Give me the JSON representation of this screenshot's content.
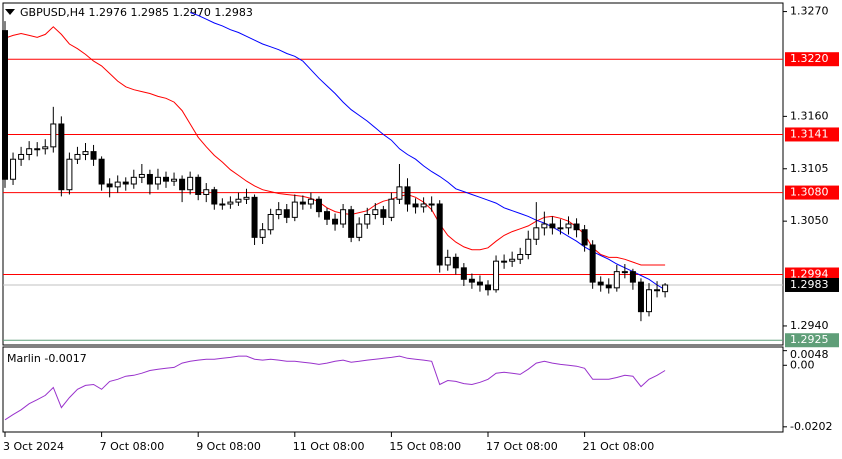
{
  "chart_data": [
    {
      "type": "candlestick",
      "title": "GBPUSD,H4  1.2976 1.2985 1.2970 1.2983",
      "categories": [
        "3 Oct 2024",
        null,
        null,
        null,
        null,
        null,
        null,
        null,
        null,
        null,
        null,
        null,
        "7 Oct 08:00",
        null,
        null,
        null,
        null,
        null,
        null,
        null,
        null,
        null,
        null,
        null,
        "9 Oct 08:00",
        null,
        null,
        null,
        null,
        null,
        null,
        null,
        null,
        null,
        null,
        null,
        "11 Oct 08:00",
        null,
        null,
        null,
        null,
        null,
        null,
        null,
        null,
        null,
        null,
        null,
        "15 Oct 08:00",
        null,
        null,
        null,
        null,
        null,
        null,
        null,
        null,
        null,
        null,
        null,
        "17 Oct 08:00",
        null,
        null,
        null,
        null,
        null,
        null,
        null,
        null,
        null,
        null,
        null,
        "21 Oct 08:00",
        null,
        null,
        null,
        null,
        null,
        null,
        null,
        null,
        null,
        null
      ],
      "open": [
        1.325,
        1.3094,
        1.3115,
        1.312,
        1.3126,
        1.3126,
        1.3128,
        1.3152,
        1.3083,
        1.3115,
        1.312,
        1.3123,
        1.3115,
        1.3089,
        1.3086,
        1.3091,
        1.3089,
        1.3096,
        1.3099,
        1.3089,
        1.3096,
        1.3092,
        1.3094,
        1.3083,
        1.3096,
        1.3078,
        1.3083,
        1.3068,
        1.3068,
        1.307,
        1.3073,
        1.3075,
        1.3033,
        1.3041,
        1.3057,
        1.3062,
        1.3054,
        1.307,
        1.3068,
        1.3073,
        1.306,
        1.3052,
        1.3047,
        1.3062,
        1.3033,
        1.3047,
        1.3057,
        1.3062,
        1.3054,
        1.3073,
        1.3086,
        1.3068,
        1.3065,
        1.3068,
        1.3068,
        1.3004,
        1.3012,
        1.3001,
        1.2989,
        1.2986,
        1.2983,
        1.2978,
        1.3008,
        1.3008,
        1.301,
        1.3015,
        1.3031,
        1.3043,
        1.3047,
        1.3043,
        1.3043,
        1.3047,
        1.3041,
        1.3025,
        1.2986,
        1.2983,
        1.298,
        1.2997,
        1.2997,
        1.2986,
        1.2955,
        1.2978,
        1.2976
      ],
      "high": [
        1.326,
        1.3122,
        1.3128,
        1.3134,
        1.3133,
        1.3136,
        1.317,
        1.316,
        1.3122,
        1.3128,
        1.3132,
        1.313,
        1.3118,
        1.3095,
        1.3098,
        1.3096,
        1.3104,
        1.311,
        1.3104,
        1.3105,
        1.3102,
        1.3101,
        1.3098,
        1.3102,
        1.3099,
        1.309,
        1.3086,
        1.3074,
        1.3076,
        1.308,
        1.3084,
        1.3078,
        1.3048,
        1.3063,
        1.307,
        1.3068,
        1.3078,
        1.3077,
        1.308,
        1.3076,
        1.3064,
        1.3058,
        1.3068,
        1.3066,
        1.3054,
        1.3064,
        1.3069,
        1.3066,
        1.308,
        1.311,
        1.3095,
        1.3074,
        1.3075,
        1.3076,
        1.3072,
        1.302,
        1.3016,
        1.3006,
        1.2995,
        1.2993,
        1.2988,
        1.3014,
        1.3015,
        1.3018,
        1.3022,
        1.304,
        1.307,
        1.306,
        1.3055,
        1.3052,
        1.3055,
        1.3053,
        1.3046,
        1.303,
        1.2992,
        1.299,
        1.3004,
        1.3005,
        1.3,
        1.299,
        1.2985,
        1.2987,
        1.2985
      ],
      "low": [
        1.3085,
        1.3088,
        1.3108,
        1.3114,
        1.3118,
        1.312,
        1.3122,
        1.3076,
        1.3078,
        1.311,
        1.3114,
        1.3108,
        1.3082,
        1.3075,
        1.308,
        1.3082,
        1.3084,
        1.309,
        1.3078,
        1.3083,
        1.3085,
        1.3087,
        1.307,
        1.3078,
        1.3072,
        1.307,
        1.3062,
        1.3062,
        1.3063,
        1.3066,
        1.3068,
        1.3025,
        1.3026,
        1.3036,
        1.3052,
        1.3048,
        1.305,
        1.3062,
        1.3063,
        1.3054,
        1.3046,
        1.304,
        1.3043,
        1.3028,
        1.3029,
        1.3042,
        1.3052,
        1.3046,
        1.305,
        1.3068,
        1.306,
        1.3058,
        1.3059,
        1.306,
        1.2996,
        1.2998,
        1.2994,
        1.2982,
        1.2979,
        1.2976,
        1.2972,
        1.2975,
        1.3,
        1.3002,
        1.3005,
        1.301,
        1.3025,
        1.3035,
        1.3036,
        1.3036,
        1.3036,
        1.3033,
        1.3018,
        1.2979,
        1.2976,
        1.2974,
        1.2976,
        1.299,
        1.2978,
        1.2945,
        1.295,
        1.297,
        1.297
      ],
      "close": [
        1.3094,
        1.3115,
        1.312,
        1.3126,
        1.3126,
        1.3128,
        1.3152,
        1.3083,
        1.3115,
        1.312,
        1.3123,
        1.3115,
        1.3089,
        1.3086,
        1.3091,
        1.3089,
        1.3096,
        1.3099,
        1.3089,
        1.3096,
        1.3092,
        1.3094,
        1.3083,
        1.3096,
        1.3078,
        1.3083,
        1.3068,
        1.3068,
        1.307,
        1.3073,
        1.3075,
        1.3033,
        1.3041,
        1.3057,
        1.3062,
        1.3054,
        1.307,
        1.3068,
        1.3073,
        1.306,
        1.3052,
        1.3047,
        1.3062,
        1.3033,
        1.3047,
        1.3057,
        1.3062,
        1.3054,
        1.3073,
        1.3086,
        1.3068,
        1.3065,
        1.3068,
        1.3068,
        1.3004,
        1.3012,
        1.3001,
        1.2989,
        1.2986,
        1.2983,
        1.2978,
        1.3008,
        1.3008,
        1.301,
        1.3015,
        1.3031,
        1.3043,
        1.3047,
        1.3043,
        1.3043,
        1.3047,
        1.3041,
        1.3025,
        1.2986,
        1.2983,
        1.298,
        1.2997,
        1.2997,
        1.2986,
        1.2955,
        1.2978,
        1.2978,
        1.2983
      ],
      "up_color": "#ffffff",
      "down_color": "#000000",
      "series": [
        {
          "color": "#ff0000",
          "values": [
            1.3242,
            1.3245,
            1.3247,
            1.3245,
            1.3243,
            1.3246,
            1.3254,
            1.3246,
            1.3236,
            1.3231,
            1.3225,
            1.3218,
            1.3213,
            1.3205,
            1.3197,
            1.3191,
            1.3188,
            1.3186,
            1.3184,
            1.3181,
            1.3179,
            1.3175,
            1.3166,
            1.3152,
            1.3138,
            1.3128,
            1.3119,
            1.3112,
            1.3104,
            1.3098,
            1.3092,
            1.3087,
            1.3083,
            1.3081,
            1.3079,
            1.3078,
            1.3077,
            1.3076,
            1.3074,
            1.307,
            1.3064,
            1.306,
            1.3058,
            1.3057,
            1.3059,
            1.3061,
            1.3067,
            1.3071,
            1.3073,
            1.3076,
            1.3078,
            1.3075,
            1.307,
            1.3062,
            1.3047,
            1.3035,
            1.3028,
            1.3023,
            1.302,
            1.302,
            1.3022,
            1.3029,
            1.3035,
            1.3039,
            1.3042,
            1.3045,
            1.305,
            1.3054,
            1.3055,
            1.3053,
            1.305,
            1.3044,
            1.3036,
            1.3022,
            1.3015,
            1.3012,
            1.3012,
            1.301,
            1.3007,
            1.3004,
            1.3004,
            1.3004,
            1.3004
          ]
        },
        {
          "color": "#0000ff",
          "values": [
            null,
            null,
            null,
            null,
            null,
            null,
            null,
            null,
            null,
            null,
            null,
            null,
            null,
            null,
            null,
            null,
            null,
            null,
            null,
            null,
            null,
            null,
            null,
            1.3269,
            1.3266,
            1.3262,
            1.3258,
            1.3255,
            1.3251,
            1.3248,
            1.3244,
            1.324,
            1.3236,
            1.3233,
            1.323,
            1.3226,
            1.3223,
            1.3218,
            1.3209,
            1.32,
            1.3192,
            1.3184,
            1.3175,
            1.3167,
            1.3161,
            1.3155,
            1.3148,
            1.3141,
            1.3135,
            1.3126,
            1.312,
            1.3115,
            1.3108,
            1.3102,
            1.3097,
            1.3091,
            1.3084,
            1.3081,
            1.3078,
            1.3075,
            1.3072,
            1.3069,
            1.3064,
            1.3061,
            1.3058,
            1.3055,
            1.3051,
            1.3048,
            1.3044,
            1.3039,
            1.3034,
            1.3029,
            1.3023,
            1.3018,
            1.3014,
            1.301,
            1.3005,
            1.3001,
            1.2997,
            1.2993,
            1.2989,
            1.2983,
            1.2978
          ]
        }
      ],
      "ylim": [
        1.292,
        1.3279
      ],
      "yticks": [
        {
          "value": 1.327,
          "label": "1.3270"
        },
        {
          "value": 1.316,
          "label": "1.3160"
        },
        1.3105,
        {
          "value": 1.305,
          "label": "1.3050"
        },
        {
          "value": 1.294,
          "label": "1.2940"
        }
      ],
      "levels": [
        {
          "value": 1.322,
          "label": "1.3220",
          "color": "#ff0000"
        },
        {
          "value": 1.3141,
          "label": "1.3141",
          "color": "#ff0000"
        },
        {
          "value": 1.308,
          "label": "1.3080",
          "color": "#ff0000"
        },
        {
          "value": 1.2994,
          "label": "1.2994",
          "color": "#ff0000"
        },
        {
          "value": 1.2925,
          "label": "1.2925",
          "color": "#5f9e78"
        }
      ],
      "last_price": 1.2983
    },
    {
      "type": "line",
      "title": "Marlin",
      "color": "#9932cc",
      "values": [
        -0.0179,
        -0.0162,
        -0.0146,
        -0.0126,
        -0.0113,
        -0.0099,
        -0.0073,
        -0.0139,
        -0.0106,
        -0.0079,
        -0.0066,
        -0.0063,
        -0.0079,
        -0.0053,
        -0.0046,
        -0.0036,
        -0.0033,
        -0.0026,
        -0.0017,
        -0.0013,
        -0.001,
        -0.0007,
        0.0007,
        0.0013,
        0.0017,
        0.002,
        0.002,
        0.0023,
        0.0026,
        0.003,
        0.003,
        0.002,
        0.0017,
        0.002,
        0.0017,
        0.0013,
        0.0013,
        0.001,
        0.0007,
        0.0003,
        0.0007,
        0.0013,
        0.0017,
        0.001,
        0.0013,
        0.0017,
        0.002,
        0.0023,
        0.0026,
        0.003,
        0.0023,
        0.002,
        0.0017,
        0.0013,
        -0.0063,
        -0.005,
        -0.0053,
        -0.006,
        -0.0063,
        -0.0056,
        -0.0046,
        -0.0026,
        -0.0023,
        -0.0026,
        -0.003,
        -0.0013,
        0.0007,
        0.0013,
        0.0007,
        0.0003,
        0,
        -0.0003,
        -0.001,
        -0.0046,
        -0.0046,
        -0.0046,
        -0.004,
        -0.0033,
        -0.0036,
        -0.007,
        -0.0046,
        -0.0033,
        -0.0017
      ],
      "ylim": [
        -0.0219,
        0.006
      ],
      "yticks": [
        0.0048,
        {
          "value": 0,
          "label": "0.00"
        },
        -0.0202
      ]
    }
  ]
}
